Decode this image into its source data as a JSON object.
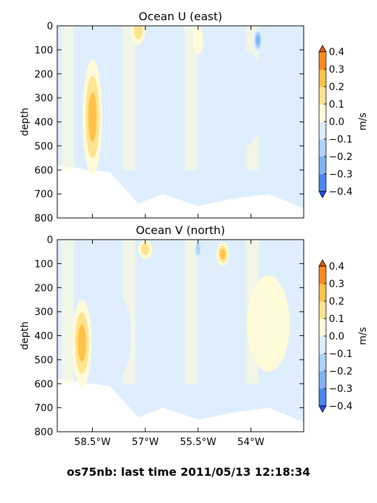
{
  "footer": "os75nb: last time 2011/05/13 12:18:34",
  "colors": {
    "levels": [
      "#2050ff",
      "#4a86f2",
      "#7fb2f8",
      "#aed3fb",
      "#deeefd",
      "#fffbd8",
      "#ffe38e",
      "#ffc24a",
      "#ff8c22",
      "#f05a10",
      "#cc1a10"
    ],
    "frame": "#000000"
  },
  "chart_data": [
    {
      "type": "heatmap",
      "title": "Ocean U (east)",
      "ylabel": "depth",
      "ylim": [
        800,
        0
      ],
      "yticks": [
        "0",
        "100",
        "200",
        "300",
        "400",
        "500",
        "600",
        "700",
        "800"
      ],
      "xlim": [
        -59.5,
        -52.5
      ],
      "xticks": [],
      "colorbar": {
        "label": "m/s",
        "levels": [
          -0.4,
          -0.3,
          -0.2,
          -0.1,
          0.0,
          0.1,
          0.2,
          0.3,
          0.4
        ],
        "ticklabels": [
          "0.4",
          "0.3",
          "0.2",
          "0.1",
          "0.0",
          "−0.1",
          "−0.2",
          "−0.3",
          "−0.4"
        ],
        "extend": "both"
      },
      "features": [
        {
          "lon": -58.5,
          "depth": 380,
          "width": 0.55,
          "height": 480,
          "value": 0.35
        },
        {
          "lon": -57.2,
          "depth": 20,
          "width": 0.4,
          "height": 120,
          "value": 0.2
        },
        {
          "lon": -55.5,
          "depth": 60,
          "width": 0.3,
          "height": 120,
          "value": 0.05
        },
        {
          "lon": -53.8,
          "depth": 60,
          "width": 0.25,
          "height": 100,
          "value": -0.25
        },
        {
          "lon": -56.8,
          "depth": 450,
          "width": 0.9,
          "height": 300,
          "value": -0.1
        },
        {
          "lon": -54.2,
          "depth": 300,
          "width": 1.2,
          "height": 400,
          "value": -0.08
        }
      ],
      "data_bottom": {
        "lon": [
          -59.5,
          -59.0,
          -58.0,
          -57.2,
          -56.5,
          -55.5,
          -54.5,
          -53.5,
          -52.5
        ],
        "depth": [
          580,
          590,
          610,
          740,
          700,
          750,
          720,
          700,
          760
        ]
      }
    },
    {
      "type": "heatmap",
      "title": "Ocean V (north)",
      "ylabel": "depth",
      "ylim": [
        800,
        0
      ],
      "yticks": [
        "0",
        "100",
        "200",
        "300",
        "400",
        "500",
        "600",
        "700",
        "800"
      ],
      "xlim": [
        -59.5,
        -52.5
      ],
      "xticks": [
        "58.5°W",
        "57°W",
        "55.5°W",
        "54°W"
      ],
      "xtick_values": [
        -58.5,
        -57.0,
        -55.5,
        -54.0
      ],
      "colorbar": {
        "label": "m/s",
        "levels": [
          -0.4,
          -0.3,
          -0.2,
          -0.1,
          0.0,
          0.1,
          0.2,
          0.3,
          0.4
        ],
        "ticklabels": [
          "0.4",
          "0.3",
          "0.2",
          "0.1",
          "0.0",
          "−0.1",
          "−0.2",
          "−0.3",
          "−0.4"
        ],
        "extend": "both"
      },
      "features": [
        {
          "lon": -58.8,
          "depth": 430,
          "width": 0.55,
          "height": 360,
          "value": 0.25
        },
        {
          "lon": -57.0,
          "depth": 40,
          "width": 0.4,
          "height": 80,
          "value": 0.2
        },
        {
          "lon": -54.8,
          "depth": 60,
          "width": 0.35,
          "height": 100,
          "value": 0.25
        },
        {
          "lon": -55.5,
          "depth": 40,
          "width": 0.2,
          "height": 80,
          "value": -0.2
        },
        {
          "lon": -57.8,
          "depth": 400,
          "width": 0.8,
          "height": 350,
          "value": -0.08
        },
        {
          "lon": -53.5,
          "depth": 350,
          "width": 1.2,
          "height": 400,
          "value": 0.05
        }
      ],
      "data_bottom": {
        "lon": [
          -59.5,
          -59.0,
          -58.0,
          -57.2,
          -56.5,
          -55.5,
          -54.5,
          -53.5,
          -52.5
        ],
        "depth": [
          580,
          590,
          610,
          740,
          700,
          750,
          720,
          700,
          760
        ]
      }
    }
  ]
}
